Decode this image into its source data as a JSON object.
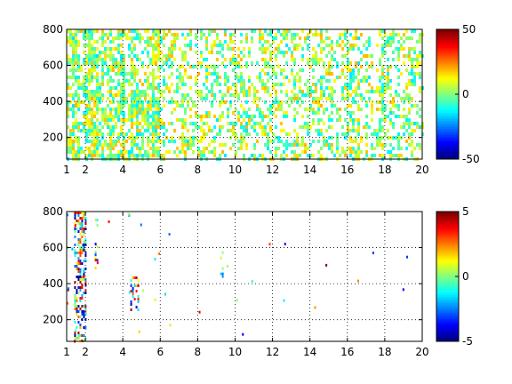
{
  "chart_data": [
    {
      "type": "heatmap",
      "title": "",
      "xlabel": "",
      "ylabel": "",
      "xlim": [
        1,
        20
      ],
      "ylim": [
        80,
        800
      ],
      "x_ticks": [
        1,
        2,
        4,
        6,
        8,
        10,
        12,
        14,
        16,
        18,
        20
      ],
      "y_ticks": [
        200,
        400,
        600,
        800
      ],
      "grid": true,
      "colorbar": {
        "min": -50,
        "max": 50,
        "ticks": [
          -50,
          0,
          50
        ],
        "colormap": "jet"
      },
      "density": 0.5,
      "value_range": [
        -15,
        20
      ],
      "hotspots": [
        {
          "x": 4.5,
          "y": 390,
          "spread_x": 0.6,
          "spread_y": 70
        }
      ]
    },
    {
      "type": "heatmap",
      "title": "",
      "xlabel": "",
      "ylabel": "",
      "xlim": [
        1,
        20
      ],
      "ylim": [
        80,
        800
      ],
      "x_ticks": [
        1,
        2,
        4,
        6,
        8,
        10,
        12,
        14,
        16,
        18,
        20
      ],
      "y_ticks": [
        200,
        400,
        600,
        800
      ],
      "grid": true,
      "colorbar": {
        "min": -5,
        "max": 5,
        "ticks": [
          -5,
          0,
          5
        ],
        "colormap": "jet"
      },
      "density": 0.02,
      "value_range": [
        -5,
        5
      ],
      "features": [
        {
          "x": [
            1.4,
            2.0
          ],
          "y": [
            80,
            800
          ],
          "note": "dense columns"
        },
        {
          "x": [
            2.5,
            2.6
          ],
          "y": [
            480,
            760
          ]
        },
        {
          "x": [
            4.4,
            4.8
          ],
          "y": [
            260,
            440
          ]
        },
        {
          "x": [
            9.2,
            9.3
          ],
          "y": [
            420,
            580
          ]
        }
      ]
    }
  ]
}
